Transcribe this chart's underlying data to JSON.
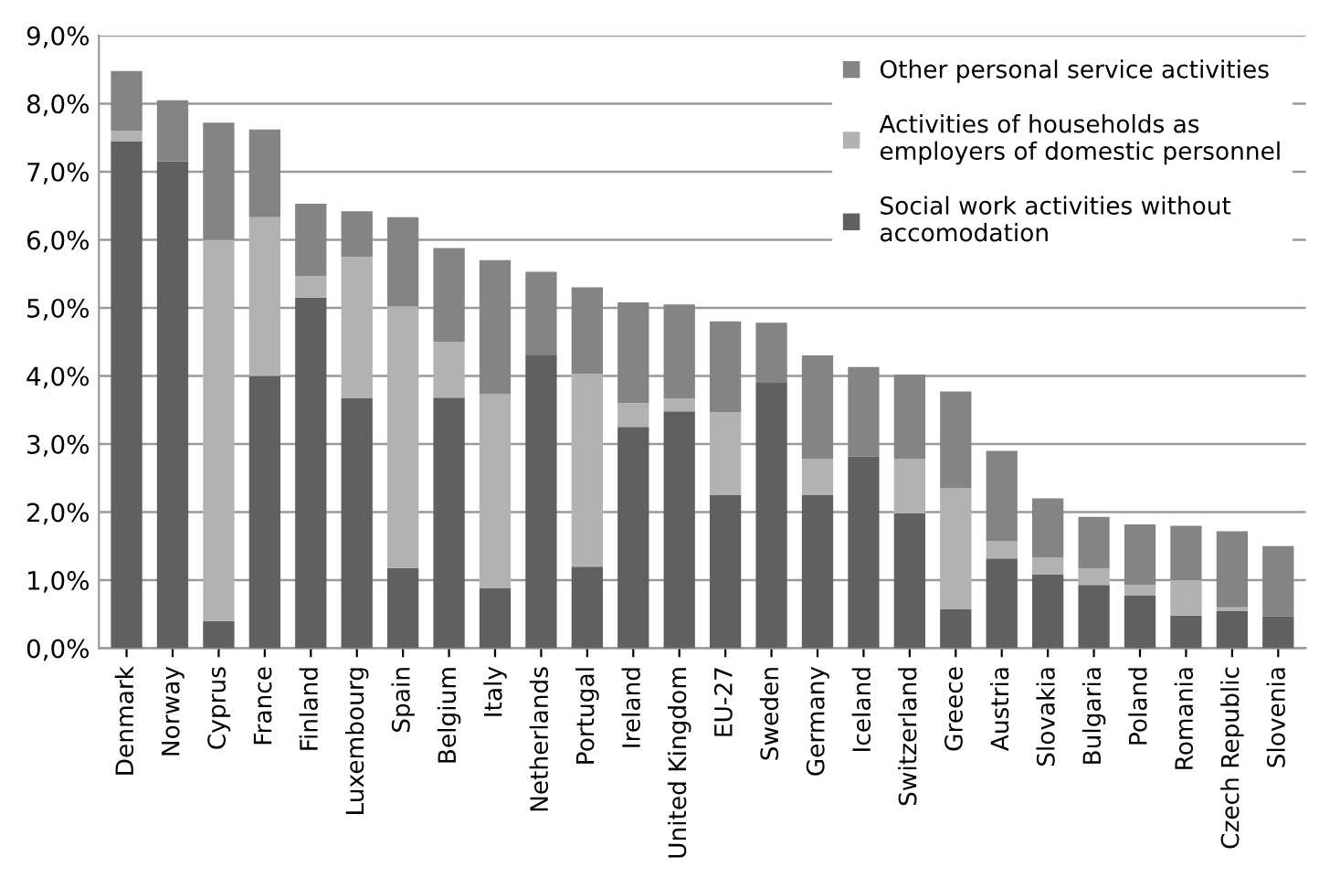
{
  "chart_data": {
    "type": "bar",
    "stacked": true,
    "categories": [
      "Denmark",
      "Norway",
      "Cyprus",
      "France",
      "Finland",
      "Luxembourg",
      "Spain",
      "Belgium",
      "Italy",
      "Netherlands",
      "Portugal",
      "Ireland",
      "United Kingdom",
      "EU-27",
      "Sweden",
      "Germany",
      "Iceland",
      "Switzerland",
      "Greece",
      "Austria",
      "Slovakia",
      "Bulgaria",
      "Poland",
      "Romania",
      "Czech Republic",
      "Slovenia"
    ],
    "series": [
      {
        "name": "Social work activities without accomodation",
        "color": "#606060",
        "values": [
          7.45,
          7.15,
          0.4,
          4.0,
          5.15,
          3.67,
          1.18,
          3.68,
          0.88,
          4.3,
          1.2,
          3.25,
          3.48,
          2.25,
          3.9,
          2.25,
          2.82,
          1.98,
          0.57,
          1.32,
          1.08,
          0.93,
          0.78,
          0.48,
          0.55,
          0.47
        ]
      },
      {
        "name": "Activities of households as employers of domestic personnel",
        "color": "#b2b2b2",
        "values": [
          0.15,
          0,
          5.6,
          2.33,
          0.32,
          2.08,
          3.84,
          0.82,
          2.85,
          0,
          2.83,
          0.35,
          0.19,
          1.22,
          0,
          0.53,
          0,
          0.8,
          1.78,
          0.25,
          0.25,
          0.24,
          0.15,
          0.52,
          0.05,
          0
        ]
      },
      {
        "name": "Other personal service activities",
        "color": "#848484",
        "values": [
          0.88,
          0.9,
          1.72,
          1.29,
          1.06,
          0.67,
          1.31,
          1.38,
          1.97,
          1.23,
          1.27,
          1.48,
          1.38,
          1.33,
          0.88,
          1.52,
          1.31,
          1.24,
          1.42,
          1.33,
          0.87,
          0.76,
          0.89,
          0.8,
          1.12,
          1.03
        ]
      }
    ],
    "ylim": [
      0,
      9
    ],
    "yticks": [
      {
        "value": 0,
        "label": "0,0%"
      },
      {
        "value": 1,
        "label": "1,0%"
      },
      {
        "value": 2,
        "label": "2,0%"
      },
      {
        "value": 3,
        "label": "3,0%"
      },
      {
        "value": 4,
        "label": "4,0%"
      },
      {
        "value": 5,
        "label": "5,0%"
      },
      {
        "value": 6,
        "label": "6,0%"
      },
      {
        "value": 7,
        "label": "7,0%"
      },
      {
        "value": 8,
        "label": "8,0%"
      },
      {
        "value": 9,
        "label": "9,0%"
      }
    ],
    "grid": "y",
    "legend": "top right"
  }
}
